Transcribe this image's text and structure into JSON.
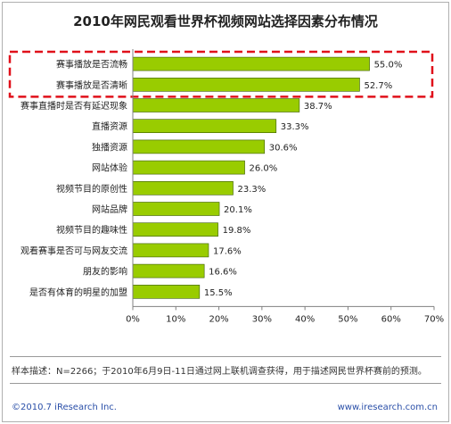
{
  "chart_data": {
    "type": "bar",
    "orientation": "horizontal",
    "title": "2010年网民观看世界杯视频网站选择因素分布情况",
    "categories": [
      "赛事播放是否流畅",
      "赛事播放是否清晰",
      "赛事直播时是否有延迟现象",
      "直播资源",
      "独播资源",
      "网站体验",
      "视频节目的原创性",
      "网站品牌",
      "视频节目的趣味性",
      "观看赛事是否可与网友交流",
      "朋友的影响",
      "是否有体育的明星的加盟"
    ],
    "values": [
      55.0,
      52.7,
      38.7,
      33.3,
      30.6,
      26.0,
      23.3,
      20.1,
      19.8,
      17.6,
      16.6,
      15.5
    ],
    "value_labels": [
      "55.0%",
      "52.7%",
      "38.7%",
      "33.3%",
      "30.6%",
      "26.0%",
      "23.3%",
      "20.1%",
      "19.8%",
      "17.6%",
      "16.6%",
      "15.5%"
    ],
    "xlim": [
      0,
      70
    ],
    "x_ticks": [
      "0%",
      "10%",
      "20%",
      "30%",
      "40%",
      "50%",
      "60%",
      "70%"
    ],
    "grid": false,
    "highlight": {
      "categories": [
        0,
        1
      ],
      "style": "dashed-box",
      "color": "#e0101a"
    },
    "colors": {
      "bar": "#99cc00",
      "bar_edge": "#3a5a00",
      "axis": "#808080"
    }
  },
  "footer": {
    "note": "样本描述：N=2266；于2010年6月9日-11日通过网上联机调查获得，用于描述网民世界杯赛前的预测。",
    "copyright": "©2010.7 iResearch Inc.",
    "website": "www.iresearch.com.cn"
  }
}
